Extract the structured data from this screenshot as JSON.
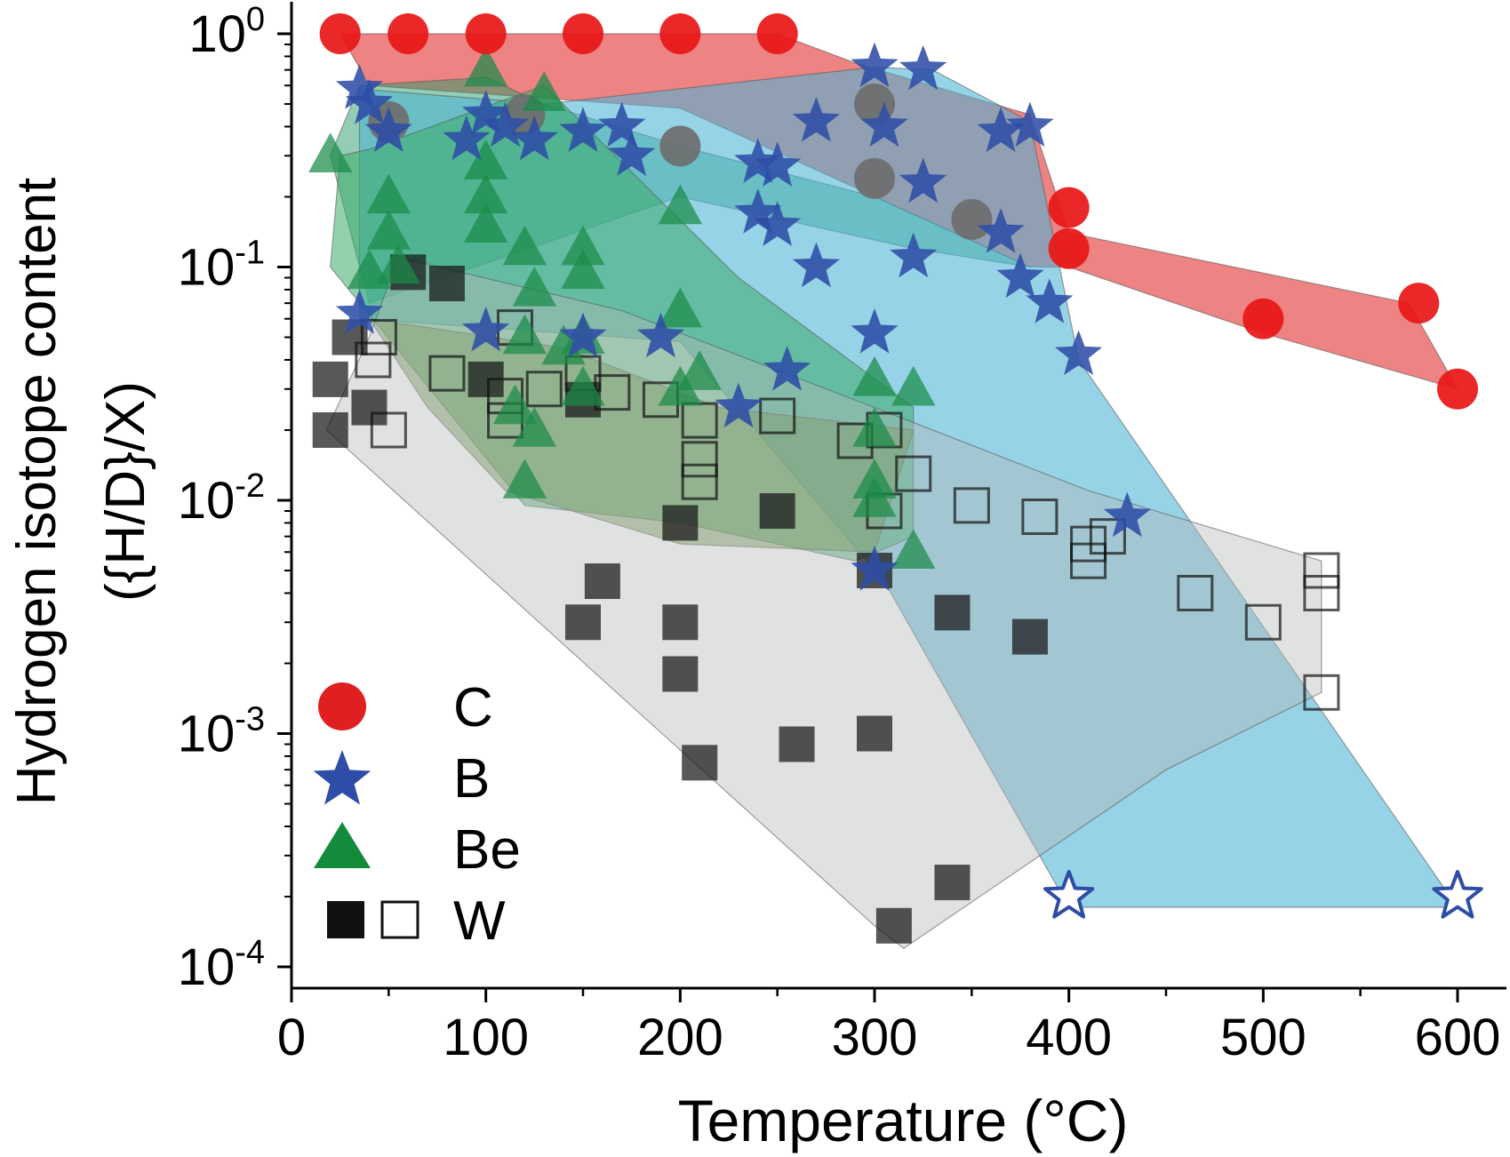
{
  "chart_data": {
    "type": "scatter",
    "xlabel": "Temperature (°C)",
    "ylabel_line1": "Hydrogen isotope content",
    "ylabel_line2": "({H/D}/X)",
    "xlim": [
      0,
      630
    ],
    "ylim": [
      0.0001,
      1.0
    ],
    "y_scale": "log",
    "grid": false,
    "legend_position": "bottom-left",
    "x_ticks": [
      {
        "value": 0,
        "label": "0"
      },
      {
        "value": 100,
        "label": "100"
      },
      {
        "value": 200,
        "label": "200"
      },
      {
        "value": 300,
        "label": "300"
      },
      {
        "value": 400,
        "label": "400"
      },
      {
        "value": 500,
        "label": "500"
      },
      {
        "value": 600,
        "label": "600"
      }
    ],
    "y_ticks": [
      {
        "value": 1.0,
        "base": "10",
        "exp": "0"
      },
      {
        "value": 0.1,
        "base": "10",
        "exp": "-1"
      },
      {
        "value": 0.01,
        "base": "10",
        "exp": "-2"
      },
      {
        "value": 0.001,
        "base": "10",
        "exp": "-3"
      },
      {
        "value": 0.0001,
        "base": "10",
        "exp": "-4"
      }
    ],
    "legend": [
      {
        "label": "C",
        "marker": "circle",
        "color": "#e02020"
      },
      {
        "label": "B",
        "marker": "star",
        "color": "#2e4da6"
      },
      {
        "label": "Be",
        "marker": "triangle",
        "color": "#138a3c"
      },
      {
        "label": "W",
        "marker": "square-pair",
        "color": "#111111"
      }
    ],
    "regions": [
      {
        "color": "#e23030",
        "opacity": 0.6,
        "points": [
          [
            25,
            1.0
          ],
          [
            250,
            1.0
          ],
          [
            290,
            0.75
          ],
          [
            380,
            0.45
          ],
          [
            400,
            0.14
          ],
          [
            575,
            0.07
          ],
          [
            600,
            0.03
          ],
          [
            500,
            0.052
          ],
          [
            400,
            0.1
          ],
          [
            380,
            0.1
          ],
          [
            200,
            0.48
          ],
          [
            40,
            0.6
          ],
          [
            25,
            1.0
          ]
        ]
      },
      {
        "color": "#2a9a6a",
        "opacity": 0.5,
        "points": [
          [
            20,
            0.3
          ],
          [
            35,
            0.6
          ],
          [
            100,
            0.65
          ],
          [
            130,
            0.5
          ],
          [
            200,
            0.33
          ],
          [
            300,
            0.2
          ],
          [
            380,
            0.1
          ],
          [
            320,
            0.12
          ],
          [
            200,
            0.2
          ],
          [
            40,
            0.07
          ],
          [
            20,
            0.3
          ]
        ]
      },
      {
        "color": "#4cb4d4",
        "opacity": 0.58,
        "points": [
          [
            35,
            0.58
          ],
          [
            130,
            0.5
          ],
          [
            300,
            0.72
          ],
          [
            330,
            0.7
          ],
          [
            380,
            0.42
          ],
          [
            405,
            0.04
          ],
          [
            600,
            0.00018
          ],
          [
            400,
            0.00018
          ],
          [
            305,
            0.0045
          ],
          [
            200,
            0.048
          ],
          [
            35,
            0.06
          ],
          [
            35,
            0.58
          ]
        ]
      },
      {
        "color": "#3aab6a",
        "opacity": 0.55,
        "points": [
          [
            25,
            0.3
          ],
          [
            40,
            0.32
          ],
          [
            130,
            0.6
          ],
          [
            230,
            0.09
          ],
          [
            320,
            0.025
          ],
          [
            320,
            0.007
          ],
          [
            290,
            0.0055
          ],
          [
            200,
            0.008
          ],
          [
            120,
            0.0095
          ],
          [
            20,
            0.1
          ],
          [
            25,
            0.3
          ]
        ]
      },
      {
        "color": "#5e8a36",
        "opacity": 0.48,
        "points": [
          [
            40,
            0.06
          ],
          [
            140,
            0.045
          ],
          [
            220,
            0.025
          ],
          [
            320,
            0.02
          ],
          [
            300,
            0.006
          ],
          [
            200,
            0.0065
          ],
          [
            110,
            0.011
          ],
          [
            70,
            0.025
          ],
          [
            40,
            0.06
          ]
        ]
      },
      {
        "color": "#b4b8b8",
        "opacity": 0.42,
        "points": [
          [
            18,
            0.02
          ],
          [
            40,
            0.05
          ],
          [
            55,
            0.11
          ],
          [
            170,
            0.065
          ],
          [
            300,
            0.025
          ],
          [
            410,
            0.011
          ],
          [
            530,
            0.0055
          ],
          [
            530,
            0.0015
          ],
          [
            450,
            0.0007
          ],
          [
            315,
            0.00012
          ],
          [
            300,
            0.00015
          ],
          [
            18,
            0.02
          ]
        ]
      }
    ],
    "series": [
      {
        "name": "C",
        "marker": "circle",
        "color": "#e81818",
        "points": [
          [
            25,
            1.0
          ],
          [
            60,
            1.0
          ],
          [
            100,
            1.0
          ],
          [
            150,
            1.0
          ],
          [
            200,
            1.0
          ],
          [
            250,
            1.0
          ],
          [
            400,
            0.18
          ],
          [
            400,
            0.12
          ],
          [
            500,
            0.06
          ],
          [
            580,
            0.07
          ],
          [
            600,
            0.03
          ]
        ]
      },
      {
        "name": "C (gray)",
        "marker": "circle",
        "color": "#6e6e6e",
        "points": [
          [
            50,
            0.42
          ],
          [
            120,
            0.45
          ],
          [
            200,
            0.33
          ],
          [
            300,
            0.5
          ],
          [
            300,
            0.24
          ],
          [
            350,
            0.16
          ]
        ]
      },
      {
        "name": "B",
        "marker": "star",
        "color": "#2e4da6",
        "points": [
          [
            35,
            0.58
          ],
          [
            40,
            0.5
          ],
          [
            50,
            0.38
          ],
          [
            90,
            0.35
          ],
          [
            100,
            0.45
          ],
          [
            110,
            0.4
          ],
          [
            125,
            0.35
          ],
          [
            150,
            0.38
          ],
          [
            170,
            0.4
          ],
          [
            175,
            0.3
          ],
          [
            240,
            0.28
          ],
          [
            250,
            0.27
          ],
          [
            240,
            0.17
          ],
          [
            250,
            0.15
          ],
          [
            270,
            0.42
          ],
          [
            300,
            0.72
          ],
          [
            305,
            0.4
          ],
          [
            325,
            0.7
          ],
          [
            325,
            0.23
          ],
          [
            320,
            0.11
          ],
          [
            270,
            0.1
          ],
          [
            365,
            0.38
          ],
          [
            380,
            0.4
          ],
          [
            365,
            0.14
          ],
          [
            375,
            0.09
          ],
          [
            390,
            0.07
          ],
          [
            405,
            0.042
          ],
          [
            300,
            0.052
          ],
          [
            255,
            0.036
          ],
          [
            230,
            0.025
          ],
          [
            100,
            0.053
          ],
          [
            150,
            0.05
          ],
          [
            190,
            0.05
          ],
          [
            35,
            0.063
          ],
          [
            300,
            0.005
          ],
          [
            430,
            0.0085
          ]
        ]
      },
      {
        "name": "B (open)",
        "marker": "star-open",
        "color": "#2e4da6",
        "points": [
          [
            400,
            0.0002
          ],
          [
            600,
            0.0002
          ]
        ]
      },
      {
        "name": "Be",
        "marker": "triangle",
        "color": "#1a8a48",
        "points": [
          [
            20,
            0.3
          ],
          [
            100,
            0.7
          ],
          [
            130,
            0.55
          ],
          [
            50,
            0.2
          ],
          [
            50,
            0.14
          ],
          [
            55,
            0.1
          ],
          [
            100,
            0.28
          ],
          [
            100,
            0.2
          ],
          [
            100,
            0.15
          ],
          [
            120,
            0.12
          ],
          [
            125,
            0.08
          ],
          [
            150,
            0.12
          ],
          [
            150,
            0.095
          ],
          [
            200,
            0.18
          ],
          [
            200,
            0.065
          ],
          [
            40,
            0.095
          ],
          [
            120,
            0.05
          ],
          [
            140,
            0.045
          ],
          [
            150,
            0.05
          ],
          [
            210,
            0.035
          ],
          [
            115,
            0.025
          ],
          [
            125,
            0.02
          ],
          [
            120,
            0.012
          ],
          [
            150,
            0.03
          ],
          [
            200,
            0.03
          ],
          [
            300,
            0.033
          ],
          [
            320,
            0.03
          ],
          [
            300,
            0.02
          ],
          [
            300,
            0.012
          ],
          [
            300,
            0.01
          ],
          [
            320,
            0.006
          ]
        ]
      },
      {
        "name": "W (filled)",
        "marker": "square",
        "color": "#111111",
        "points": [
          [
            30,
            0.05
          ],
          [
            20,
            0.033
          ],
          [
            20,
            0.02
          ],
          [
            40,
            0.025
          ],
          [
            100,
            0.033
          ],
          [
            150,
            0.027
          ],
          [
            200,
            0.008
          ],
          [
            250,
            0.009
          ],
          [
            160,
            0.0045
          ],
          [
            150,
            0.003
          ],
          [
            200,
            0.003
          ],
          [
            200,
            0.0018
          ],
          [
            210,
            0.00075
          ],
          [
            260,
            0.0009
          ],
          [
            300,
            0.001
          ],
          [
            340,
            0.00023
          ],
          [
            310,
            0.00015
          ],
          [
            300,
            0.005
          ],
          [
            340,
            0.0033
          ],
          [
            380,
            0.0026
          ],
          [
            80,
            0.085
          ],
          [
            60,
            0.095
          ]
        ]
      },
      {
        "name": "W (open)",
        "marker": "square-open",
        "color": "#111111",
        "points": [
          [
            45,
            0.05
          ],
          [
            42,
            0.04
          ],
          [
            50,
            0.02
          ],
          [
            80,
            0.035
          ],
          [
            110,
            0.028
          ],
          [
            110,
            0.022
          ],
          [
            130,
            0.03
          ],
          [
            150,
            0.035
          ],
          [
            165,
            0.029
          ],
          [
            190,
            0.027
          ],
          [
            210,
            0.015
          ],
          [
            210,
            0.022
          ],
          [
            210,
            0.012
          ],
          [
            250,
            0.023
          ],
          [
            290,
            0.018
          ],
          [
            305,
            0.02
          ],
          [
            305,
            0.009
          ],
          [
            320,
            0.013
          ],
          [
            350,
            0.0095
          ],
          [
            385,
            0.0085
          ],
          [
            410,
            0.0065
          ],
          [
            410,
            0.0055
          ],
          [
            420,
            0.007
          ],
          [
            465,
            0.004
          ],
          [
            500,
            0.003
          ],
          [
            530,
            0.005
          ],
          [
            530,
            0.004
          ],
          [
            530,
            0.0015
          ],
          [
            115,
            0.055
          ]
        ]
      }
    ]
  }
}
